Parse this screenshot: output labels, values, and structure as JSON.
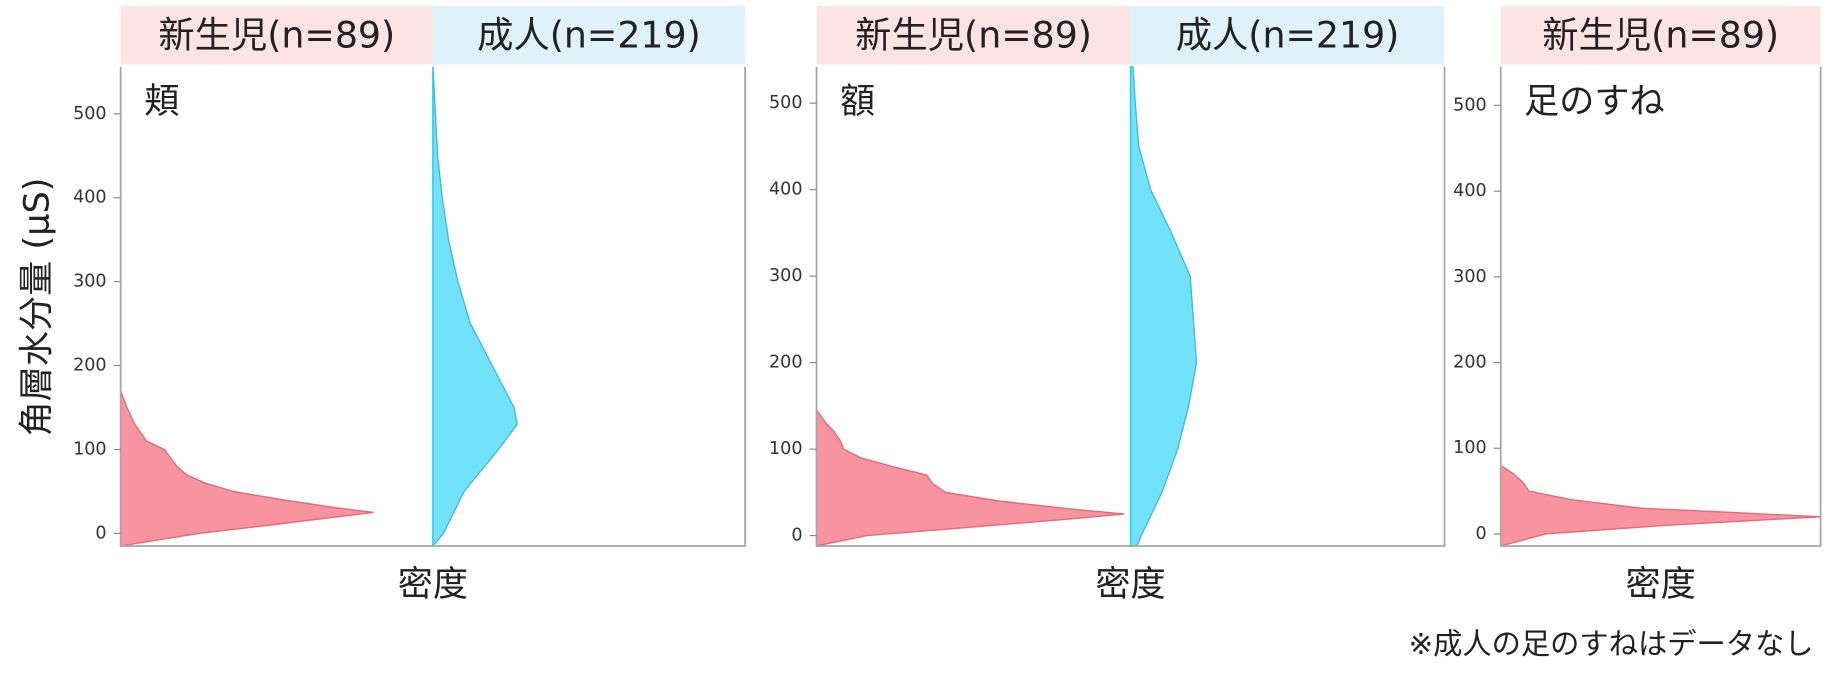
{
  "y_label": "角層水分量 (μS)",
  "footnote": "※成人の足のすねはデータなし",
  "chart_data": [
    {
      "type": "density",
      "title": "頬",
      "xlabel": "密度",
      "xlim": [
        0,
        1
      ],
      "ylim": [
        -15,
        556
      ],
      "yticks": [
        0,
        100,
        200,
        300,
        400,
        500
      ],
      "series": [
        {
          "name": "新生児(n=89)",
          "color": "#f7949f",
          "header_color": "#fde3e3",
          "y": [
            -15,
            0,
            10,
            20,
            25,
            30,
            40,
            50,
            60,
            70,
            80,
            90,
            100,
            110,
            130,
            150,
            170
          ],
          "density": [
            0,
            0.25,
            0.48,
            0.7,
            0.81,
            0.7,
            0.52,
            0.36,
            0.27,
            0.21,
            0.18,
            0.16,
            0.14,
            0.083,
            0.045,
            0.02,
            0
          ]
        },
        {
          "name": "成人(n=219)",
          "color": "#72e2fb",
          "header_color": "#dff2fb",
          "y": [
            -15,
            0,
            50,
            100,
            130,
            150,
            200,
            250,
            300,
            350,
            400,
            450,
            500,
            556
          ],
          "density": [
            0,
            0.034,
            0.1,
            0.21,
            0.27,
            0.26,
            0.19,
            0.12,
            0.08,
            0.05,
            0.03,
            0.015,
            0.008,
            0
          ]
        }
      ]
    },
    {
      "type": "density",
      "title": "額",
      "xlabel": "密度",
      "xlim": [
        0,
        1
      ],
      "ylim": [
        -12,
        542
      ],
      "yticks": [
        0,
        100,
        200,
        300,
        400,
        500
      ],
      "series": [
        {
          "name": "新生児(n=89)",
          "color": "#f7949f",
          "header_color": "#fde3e3",
          "y": [
            -12,
            0,
            10,
            20,
            25,
            30,
            40,
            50,
            60,
            70,
            80,
            90,
            100,
            110,
            120,
            130,
            145
          ],
          "density": [
            0,
            0.16,
            0.5,
            0.83,
            0.98,
            0.83,
            0.58,
            0.41,
            0.37,
            0.35,
            0.24,
            0.14,
            0.086,
            0.075,
            0.056,
            0.03,
            0
          ]
        },
        {
          "name": "成人(n=219)",
          "color": "#72e2fb",
          "header_color": "#dff2fb",
          "y": [
            -12,
            0,
            50,
            100,
            150,
            200,
            250,
            300,
            350,
            400,
            450,
            500,
            542
          ],
          "density": [
            0.02,
            0.034,
            0.1,
            0.15,
            0.185,
            0.21,
            0.2,
            0.19,
            0.13,
            0.064,
            0.026,
            0.015,
            0.008
          ]
        }
      ]
    },
    {
      "type": "density",
      "title": "足のすね",
      "xlabel": "密度",
      "xlim": [
        0,
        1
      ],
      "ylim": [
        -14,
        545
      ],
      "yticks": [
        0,
        100,
        200,
        300,
        400,
        500
      ],
      "series": [
        {
          "name": "新生児(n=89)",
          "color": "#f7949f",
          "header_color": "#fde3e3",
          "y": [
            -14,
            0,
            10,
            20,
            25,
            30,
            40,
            50,
            60,
            70,
            80
          ],
          "density": [
            0,
            0.14,
            0.51,
            1.0,
            0.73,
            0.44,
            0.22,
            0.088,
            0.07,
            0.04,
            0
          ]
        }
      ]
    }
  ]
}
